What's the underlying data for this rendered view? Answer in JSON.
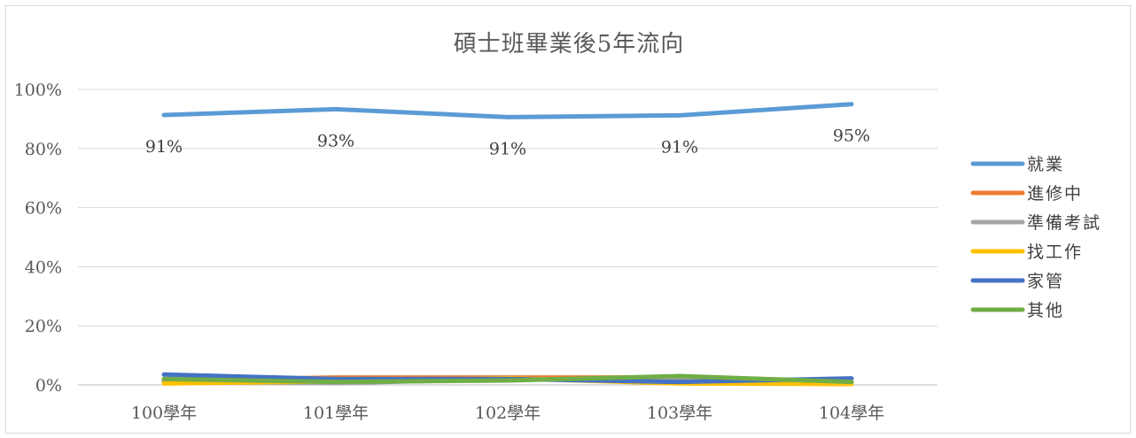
{
  "chart_data": {
    "type": "line",
    "title": "碩士班畢業後5年流向",
    "xlabel": "",
    "ylabel": "",
    "categories": [
      "100學年",
      "101學年",
      "102學年",
      "103學年",
      "104學年"
    ],
    "y_ticks": [
      "0%",
      "20%",
      "40%",
      "60%",
      "80%",
      "100%"
    ],
    "ylim": [
      0,
      100
    ],
    "grid": true,
    "legend_position": "right",
    "series": [
      {
        "name": "就業",
        "color": "#5b9bd5",
        "values": [
          91.3,
          93.3,
          90.6,
          91.2,
          95.0
        ],
        "labels": [
          "91%",
          "93%",
          "91%",
          "91%",
          "95%"
        ]
      },
      {
        "name": "進修中",
        "color": "#ed7d31",
        "values": [
          1.5,
          2.5,
          2.5,
          2.5,
          1.0
        ]
      },
      {
        "name": "準備考試",
        "color": "#a5a5a5",
        "values": [
          1.0,
          0.6,
          2.0,
          1.5,
          0.5
        ]
      },
      {
        "name": "找工作",
        "color": "#ffc000",
        "values": [
          0.5,
          1.2,
          2.2,
          0.5,
          0.3
        ]
      },
      {
        "name": "家管",
        "color": "#4472c4",
        "values": [
          3.5,
          2.0,
          2.0,
          1.0,
          2.2
        ]
      },
      {
        "name": "其他",
        "color": "#70ad47",
        "values": [
          2.0,
          1.0,
          1.5,
          3.0,
          1.0
        ]
      }
    ]
  }
}
